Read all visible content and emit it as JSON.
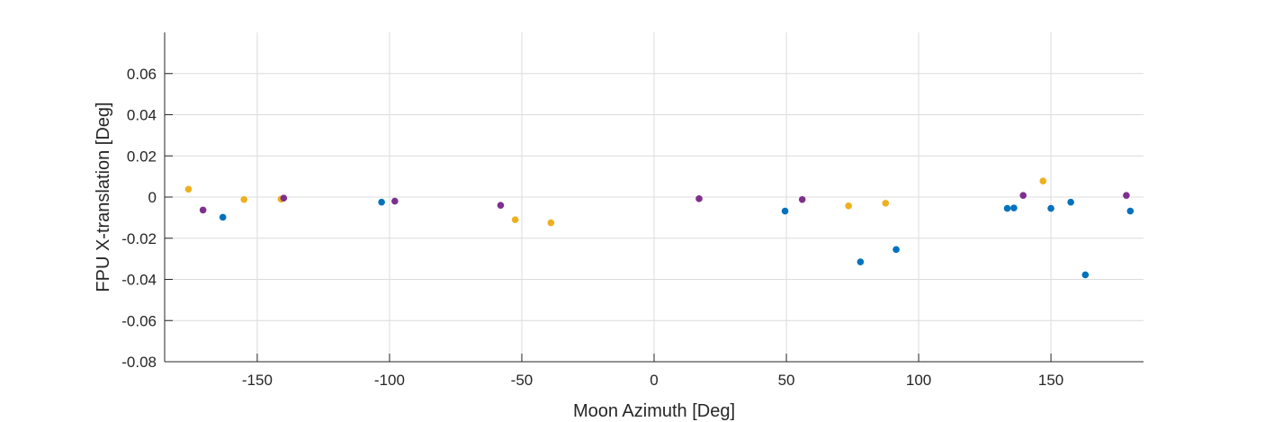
{
  "chart_data": {
    "type": "scatter",
    "title": "",
    "xlabel": "Moon Azimuth [Deg]",
    "ylabel": "FPU X-translation [Deg]",
    "xlim": [
      -185,
      185
    ],
    "ylim": [
      -0.08,
      0.08
    ],
    "xticks": [
      -150,
      -100,
      -50,
      0,
      50,
      100,
      150
    ],
    "xtick_labels": [
      "-150",
      "-100",
      "-50",
      "0",
      "50",
      "100",
      "150"
    ],
    "yticks": [
      -0.08,
      -0.06,
      -0.04,
      -0.02,
      0,
      0.02,
      0.04,
      0.06
    ],
    "ytick_labels": [
      "-0.08",
      "-0.06",
      "-0.04",
      "-0.02",
      "0",
      "0.02",
      "0.04",
      "0.06"
    ],
    "grid": true,
    "series": [
      {
        "color": "#0072BD",
        "points": [
          [
            -163,
            -0.0098
          ],
          [
            -103,
            -0.0025
          ],
          [
            49.5,
            -0.0068
          ],
          [
            78,
            -0.0315
          ],
          [
            91.5,
            -0.0255
          ],
          [
            133.5,
            -0.0055
          ],
          [
            136,
            -0.0053
          ],
          [
            150,
            -0.0055
          ],
          [
            157.5,
            -0.0025
          ],
          [
            163,
            -0.0378
          ],
          [
            180,
            -0.0068
          ]
        ]
      },
      {
        "color": "#EDB120",
        "points": [
          [
            -176,
            0.0038
          ],
          [
            -155,
            -0.0012
          ],
          [
            -141,
            -0.001
          ],
          [
            -52.5,
            -0.011
          ],
          [
            -39,
            -0.0125
          ],
          [
            73.5,
            -0.0043
          ],
          [
            87.5,
            -0.003
          ],
          [
            147,
            0.0078
          ]
        ]
      },
      {
        "color": "#7E2F8E",
        "points": [
          [
            -170.5,
            -0.0063
          ],
          [
            -140,
            -0.0005
          ],
          [
            -98,
            -0.002
          ],
          [
            -58,
            -0.004
          ],
          [
            17,
            -0.0008
          ],
          [
            56,
            -0.0012
          ],
          [
            139.5,
            0.0008
          ],
          [
            178.5,
            0.0008
          ]
        ]
      }
    ]
  }
}
